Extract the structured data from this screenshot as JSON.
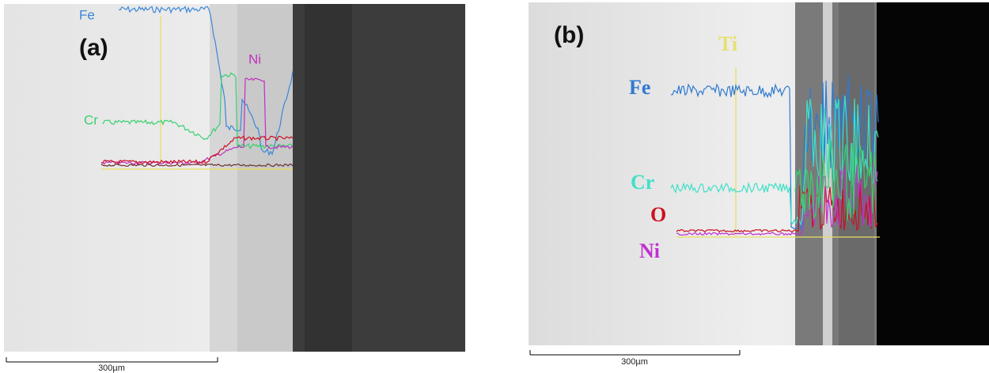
{
  "panels": [
    {
      "label": "(a)",
      "elements": [
        "Fe",
        "Ni",
        "Cr"
      ],
      "scale_bar": "300µm"
    },
    {
      "label": "(b)",
      "elements": [
        "Ti",
        "Fe",
        "Cr",
        "O",
        "Ni"
      ],
      "scale_bar": "300µm"
    }
  ]
}
